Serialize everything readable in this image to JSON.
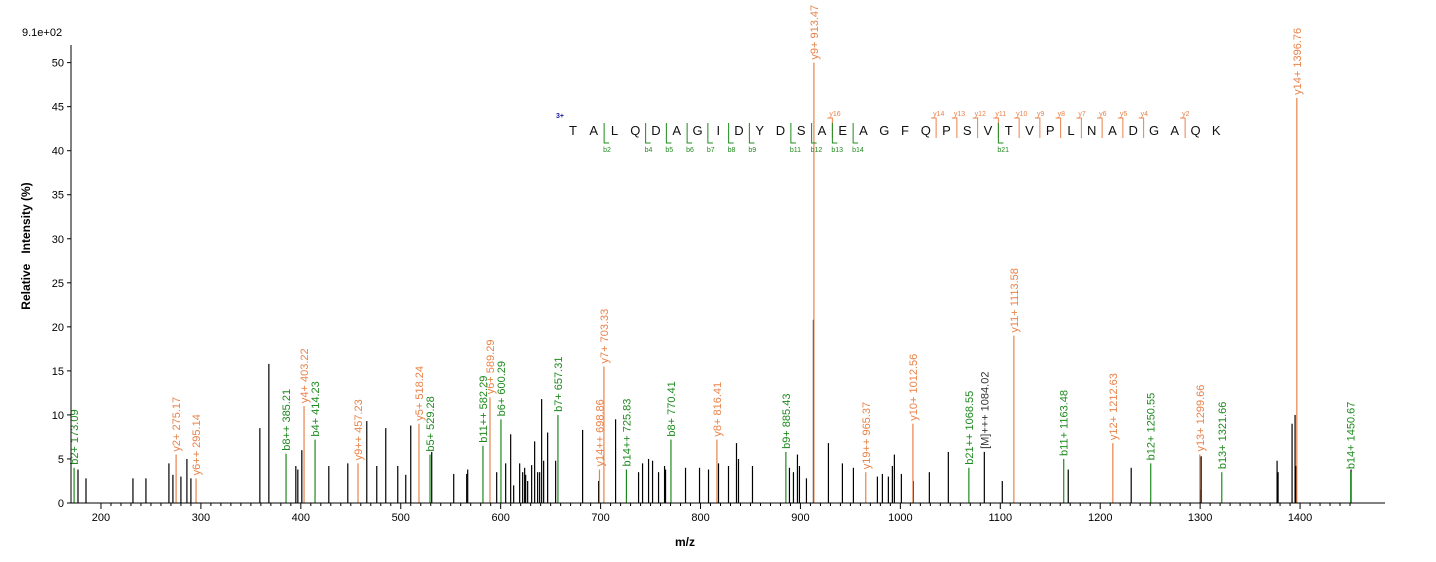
{
  "chart_data": {
    "type": "bar",
    "scale_label": "9.1e+02",
    "xlabel": "m/z",
    "ylabel": "Relative   Intensity (%)",
    "xlim": [
      170,
      1485
    ],
    "ylim": [
      0,
      52
    ],
    "x_ticks": [
      200,
      300,
      400,
      500,
      600,
      700,
      800,
      900,
      1000,
      1100,
      1200,
      1300,
      1400
    ],
    "y_ticks": [
      0,
      5,
      10,
      15,
      20,
      25,
      30,
      35,
      40,
      45,
      50
    ],
    "colors": {
      "y_ion": "#E8834A",
      "b_ion": "#1E8A1E",
      "other": "#000000",
      "charge": "#1A1AA0"
    },
    "peptide": {
      "charge": "3+",
      "sequence": [
        "T",
        "A",
        "L",
        "Q",
        "D",
        "A",
        "G",
        "I",
        "D",
        "Y",
        "D",
        "S",
        "A",
        "E",
        "A",
        "G",
        "F",
        "Q",
        "P",
        "S",
        "V",
        "T",
        "V",
        "P",
        "L",
        "N",
        "A",
        "D",
        "G",
        "A",
        "Q",
        "K"
      ],
      "y_marks": [
        {
          "label": "y16",
          "after": 13
        },
        {
          "label": "y14",
          "after": 18
        },
        {
          "label": "y13",
          "after": 19
        },
        {
          "label": "y12",
          "after": 20
        },
        {
          "label": "y11",
          "after": 21
        },
        {
          "label": "y10",
          "after": 22
        },
        {
          "label": "y9",
          "after": 23
        },
        {
          "label": "y8",
          "after": 24
        },
        {
          "label": "y7",
          "after": 25
        },
        {
          "label": "y6",
          "after": 26
        },
        {
          "label": "y5",
          "after": 27
        },
        {
          "label": "y4",
          "after": 28
        },
        {
          "label": "y2",
          "after": 30
        }
      ],
      "b_marks": [
        {
          "label": "b2",
          "after": 2
        },
        {
          "label": "b4",
          "after": 4
        },
        {
          "label": "b5",
          "after": 5
        },
        {
          "label": "b6",
          "after": 6
        },
        {
          "label": "b7",
          "after": 7
        },
        {
          "label": "b8",
          "after": 8
        },
        {
          "label": "b9",
          "after": 9
        },
        {
          "label": "b11",
          "after": 11
        },
        {
          "label": "b12",
          "after": 12
        },
        {
          "label": "b13",
          "after": 13
        },
        {
          "label": "b14",
          "after": 14
        },
        {
          "label": "b21",
          "after": 21
        }
      ]
    },
    "annotated_peaks": [
      {
        "x": 173.09,
        "y": 4.0,
        "label": "b2+ 173.09",
        "ion": "b"
      },
      {
        "x": 275.17,
        "y": 5.5,
        "label": "y2+ 275.17",
        "ion": "y"
      },
      {
        "x": 295.14,
        "y": 2.8,
        "label": "y6++ 295.14",
        "ion": "y"
      },
      {
        "x": 385.21,
        "y": 5.6,
        "label": "b8++ 385.21",
        "ion": "b"
      },
      {
        "x": 403.22,
        "y": 11.0,
        "label": "y4+ 403.22",
        "ion": "y"
      },
      {
        "x": 414.23,
        "y": 7.2,
        "label": "b4+ 414.23",
        "ion": "b"
      },
      {
        "x": 457.23,
        "y": 4.5,
        "label": "y9++ 457.23",
        "ion": "y"
      },
      {
        "x": 518.24,
        "y": 9.0,
        "label": "y5+ 518.24",
        "ion": "y"
      },
      {
        "x": 529.28,
        "y": 5.5,
        "label": "b5+ 529.28",
        "ion": "b"
      },
      {
        "x": 582.29,
        "y": 6.5,
        "label": "b11++ 582.29",
        "ion": "b"
      },
      {
        "x": 589.29,
        "y": 12.0,
        "label": "y6+ 589.29",
        "ion": "y"
      },
      {
        "x": 600.29,
        "y": 9.5,
        "label": "b6+ 600.29",
        "ion": "b"
      },
      {
        "x": 657.31,
        "y": 10.0,
        "label": "b7+ 657.31",
        "ion": "b"
      },
      {
        "x": 698.86,
        "y": 3.8,
        "label": "y14++ 698.86",
        "ion": "y"
      },
      {
        "x": 703.33,
        "y": 15.5,
        "label": "y7+ 703.33",
        "ion": "y"
      },
      {
        "x": 725.83,
        "y": 3.8,
        "label": "b14++ 725.83",
        "ion": "b"
      },
      {
        "x": 770.41,
        "y": 7.2,
        "label": "b8+ 770.41",
        "ion": "b"
      },
      {
        "x": 816.41,
        "y": 7.2,
        "label": "y8+ 816.41",
        "ion": "y"
      },
      {
        "x": 885.43,
        "y": 5.8,
        "label": "b9+ 885.43",
        "ion": "b"
      },
      {
        "x": 913.47,
        "y": 50.0,
        "label": "y9+ 913.47",
        "ion": "y"
      },
      {
        "x": 965.37,
        "y": 3.5,
        "label": "y19++ 965.37",
        "ion": "y"
      },
      {
        "x": 1012.56,
        "y": 9.0,
        "label": "y10+ 1012.56",
        "ion": "y"
      },
      {
        "x": 1068.55,
        "y": 4.0,
        "label": "b21++ 1068.55",
        "ion": "b"
      },
      {
        "x": 1084.02,
        "y": 5.8,
        "label": "[M]+++ 1084.02",
        "ion": "other"
      },
      {
        "x": 1113.58,
        "y": 19.0,
        "label": "y11+ 1113.58",
        "ion": "y"
      },
      {
        "x": 1163.48,
        "y": 5.0,
        "label": "b11+ 1163.48",
        "ion": "b"
      },
      {
        "x": 1212.63,
        "y": 6.8,
        "label": "y12+ 1212.63",
        "ion": "y"
      },
      {
        "x": 1250.55,
        "y": 4.5,
        "label": "b12+ 1250.55",
        "ion": "b"
      },
      {
        "x": 1299.66,
        "y": 5.5,
        "label": "y13+ 1299.66",
        "ion": "y"
      },
      {
        "x": 1321.66,
        "y": 3.5,
        "label": "b13+ 1321.66",
        "ion": "b"
      },
      {
        "x": 1396.76,
        "y": 46.0,
        "label": "y14+ 1396.76",
        "ion": "y"
      },
      {
        "x": 1450.67,
        "y": 3.5,
        "label": "b14+ 1450.67",
        "ion": "b"
      }
    ],
    "other_peaks": [
      {
        "x": 177,
        "y": 3.8
      },
      {
        "x": 185,
        "y": 2.8
      },
      {
        "x": 232,
        "y": 2.8
      },
      {
        "x": 245,
        "y": 2.8
      },
      {
        "x": 268,
        "y": 4.5
      },
      {
        "x": 272,
        "y": 3.2
      },
      {
        "x": 280,
        "y": 3.0
      },
      {
        "x": 286,
        "y": 5.0
      },
      {
        "x": 290,
        "y": 2.8
      },
      {
        "x": 359,
        "y": 8.5
      },
      {
        "x": 368,
        "y": 15.8
      },
      {
        "x": 395,
        "y": 4.2
      },
      {
        "x": 397,
        "y": 3.8
      },
      {
        "x": 401,
        "y": 6.0
      },
      {
        "x": 428,
        "y": 4.2
      },
      {
        "x": 447,
        "y": 4.5
      },
      {
        "x": 466,
        "y": 9.3
      },
      {
        "x": 476,
        "y": 4.2
      },
      {
        "x": 485,
        "y": 8.5
      },
      {
        "x": 497,
        "y": 4.2
      },
      {
        "x": 505,
        "y": 3.2
      },
      {
        "x": 510,
        "y": 8.8
      },
      {
        "x": 531,
        "y": 5.8
      },
      {
        "x": 553,
        "y": 3.3
      },
      {
        "x": 566,
        "y": 3.3
      },
      {
        "x": 567,
        "y": 3.8
      },
      {
        "x": 596,
        "y": 3.5
      },
      {
        "x": 605,
        "y": 4.5
      },
      {
        "x": 610,
        "y": 7.8
      },
      {
        "x": 613,
        "y": 2.0
      },
      {
        "x": 619,
        "y": 4.5
      },
      {
        "x": 622,
        "y": 3.5
      },
      {
        "x": 624,
        "y": 4.0
      },
      {
        "x": 625,
        "y": 3.2
      },
      {
        "x": 627,
        "y": 2.5
      },
      {
        "x": 631,
        "y": 4.3
      },
      {
        "x": 634,
        "y": 7.0
      },
      {
        "x": 637,
        "y": 3.5
      },
      {
        "x": 639,
        "y": 3.5
      },
      {
        "x": 641,
        "y": 11.8
      },
      {
        "x": 643,
        "y": 4.8
      },
      {
        "x": 647,
        "y": 8.0
      },
      {
        "x": 655,
        "y": 4.8
      },
      {
        "x": 682,
        "y": 8.3
      },
      {
        "x": 698,
        "y": 2.5
      },
      {
        "x": 715,
        "y": 9.5
      },
      {
        "x": 738,
        "y": 3.5
      },
      {
        "x": 742,
        "y": 4.5
      },
      {
        "x": 748,
        "y": 5.0
      },
      {
        "x": 752,
        "y": 4.8
      },
      {
        "x": 758,
        "y": 3.5
      },
      {
        "x": 764,
        "y": 4.2
      },
      {
        "x": 765,
        "y": 3.8
      },
      {
        "x": 785,
        "y": 4.0
      },
      {
        "x": 799,
        "y": 4.0
      },
      {
        "x": 808,
        "y": 3.8
      },
      {
        "x": 818,
        "y": 4.5
      },
      {
        "x": 828,
        "y": 4.2
      },
      {
        "x": 836,
        "y": 6.8
      },
      {
        "x": 838,
        "y": 5.0
      },
      {
        "x": 852,
        "y": 4.2
      },
      {
        "x": 889,
        "y": 4.0
      },
      {
        "x": 893,
        "y": 3.5
      },
      {
        "x": 897,
        "y": 5.5
      },
      {
        "x": 899,
        "y": 4.2
      },
      {
        "x": 906,
        "y": 2.8
      },
      {
        "x": 913,
        "y": 20.8
      },
      {
        "x": 928,
        "y": 6.8
      },
      {
        "x": 942,
        "y": 4.5
      },
      {
        "x": 953,
        "y": 4.0
      },
      {
        "x": 977,
        "y": 3.0
      },
      {
        "x": 982,
        "y": 3.3
      },
      {
        "x": 988,
        "y": 3.0
      },
      {
        "x": 992,
        "y": 4.2
      },
      {
        "x": 994,
        "y": 5.5
      },
      {
        "x": 1001,
        "y": 3.3
      },
      {
        "x": 1013,
        "y": 2.5
      },
      {
        "x": 1029,
        "y": 3.5
      },
      {
        "x": 1048,
        "y": 5.8
      },
      {
        "x": 1102,
        "y": 2.5
      },
      {
        "x": 1168,
        "y": 3.8
      },
      {
        "x": 1231,
        "y": 4.0
      },
      {
        "x": 1300,
        "y": 1.5
      },
      {
        "x": 1301,
        "y": 5.3
      },
      {
        "x": 1377,
        "y": 4.8
      },
      {
        "x": 1378,
        "y": 3.5
      },
      {
        "x": 1392,
        "y": 9.0
      },
      {
        "x": 1395,
        "y": 10.0
      },
      {
        "x": 1396,
        "y": 4.2
      },
      {
        "x": 1451,
        "y": 3.8
      }
    ]
  }
}
